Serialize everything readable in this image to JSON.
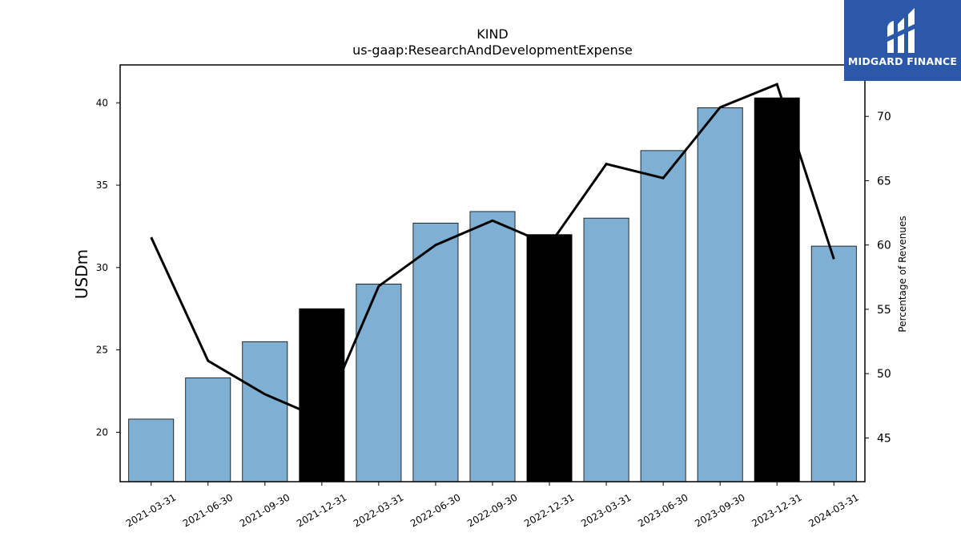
{
  "chart_data": {
    "type": "bar",
    "title": "KIND",
    "subtitle": "us-gaap:ResearchAndDevelopmentExpense",
    "ylabel": "USDm",
    "y2label": "Percentage of Revenues",
    "categories": [
      "2021-03-31",
      "2021-06-30",
      "2021-09-30",
      "2021-12-31",
      "2022-03-31",
      "2022-06-30",
      "2022-09-30",
      "2022-12-31",
      "2023-03-31",
      "2023-06-30",
      "2023-09-30",
      "2023-12-31",
      "2024-03-31"
    ],
    "values": [
      20.8,
      23.3,
      25.5,
      27.5,
      29.0,
      32.7,
      33.4,
      32.0,
      33.0,
      37.1,
      39.7,
      40.3,
      31.3
    ],
    "highlight": [
      false,
      false,
      false,
      true,
      false,
      false,
      false,
      true,
      false,
      false,
      false,
      true,
      false
    ],
    "line_series": {
      "values": [
        60.6,
        51.0,
        48.4,
        46.5,
        56.8,
        60.0,
        61.9,
        60.0,
        66.3,
        65.2,
        70.7,
        72.5,
        58.9
      ]
    },
    "ylim": [
      17.0,
      42.3
    ],
    "y2lim": [
      41.6,
      74.0
    ],
    "yticks": [
      20,
      25,
      30,
      35,
      40
    ],
    "y2ticks": [
      45,
      50,
      55,
      60,
      65,
      70
    ],
    "colors": {
      "bar": "#7fb0d3",
      "highlight_bar": "#000000",
      "line": "#000000",
      "edge": "#000000"
    },
    "grid": false
  },
  "logo": {
    "text": "MIDGARD FINANCE",
    "background": "#2b58a8"
  }
}
